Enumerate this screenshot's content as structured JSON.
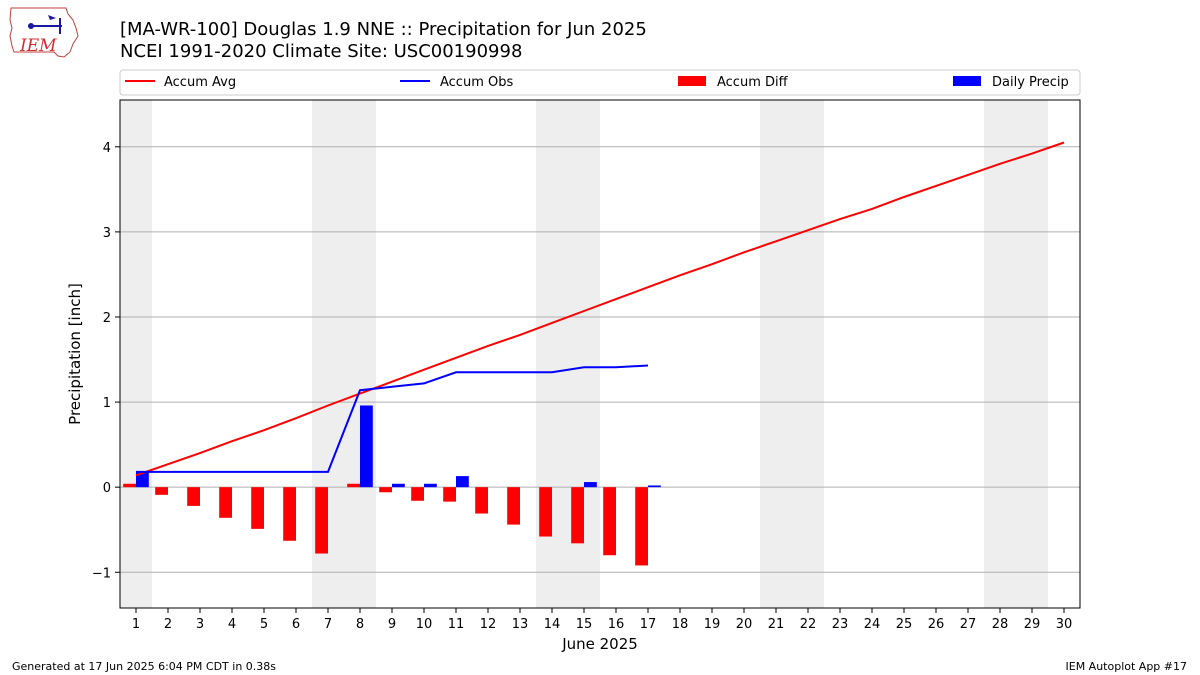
{
  "header": {
    "title_line1": "[MA-WR-100] Douglas 1.9 NNE :: Precipitation for Jun 2025",
    "title_line2": "NCEI 1991-2020 Climate Site: USC00190998",
    "logo_text": "IEM"
  },
  "footer": {
    "left": "Generated at 17 Jun 2025 6:04 PM CDT in 0.38s",
    "right": "IEM Autoplot App #17"
  },
  "colors": {
    "accum_avg": "#ff0000",
    "accum_obs": "#0000ff",
    "accum_diff": "#ff0000",
    "daily_precip": "#0000ff",
    "weekend_shade": "#eeeeee",
    "grid": "#b0b0b0"
  },
  "chart_data": {
    "type": "bar",
    "xlabel": "June 2025",
    "ylabel": "Precipitation [inch]",
    "xlim": [
      0.5,
      30.5
    ],
    "ylim": [
      -1.42,
      4.55
    ],
    "x_ticks": [
      1,
      2,
      3,
      4,
      5,
      6,
      7,
      8,
      9,
      10,
      11,
      12,
      13,
      14,
      15,
      16,
      17,
      18,
      19,
      20,
      21,
      22,
      23,
      24,
      25,
      26,
      27,
      28,
      29,
      30
    ],
    "x_tick_labels": [
      "1",
      "2",
      "3",
      "4",
      "5",
      "6",
      "7",
      "8",
      "9",
      "10",
      "11",
      "12",
      "13",
      "14",
      "15",
      "16",
      "17",
      "18",
      "19",
      "20",
      "21",
      "22",
      "23",
      "24",
      "25",
      "26",
      "27",
      "28",
      "29",
      "30"
    ],
    "y_ticks": [
      -1,
      0,
      1,
      2,
      3,
      4
    ],
    "y_tick_labels": [
      "−1",
      "0",
      "1",
      "2",
      "3",
      "4"
    ],
    "grid": "horizontal",
    "legend_position": "top",
    "legend": [
      {
        "label": "Accum Avg",
        "kind": "line",
        "color": "#ff0000"
      },
      {
        "label": "Accum Obs",
        "kind": "line",
        "color": "#0000ff"
      },
      {
        "label": "Accum Diff",
        "kind": "bar",
        "color": "#ff0000"
      },
      {
        "label": "Daily Precip",
        "kind": "bar",
        "color": "#0000ff"
      }
    ],
    "weekend_shading": [
      [
        0.5,
        1.5
      ],
      [
        6.5,
        8.5
      ],
      [
        13.5,
        15.5
      ],
      [
        20.5,
        22.5
      ],
      [
        27.5,
        29.5
      ]
    ],
    "series": [
      {
        "name": "Accum Avg",
        "type": "line",
        "color": "#ff0000",
        "x": [
          1,
          2,
          3,
          4,
          5,
          6,
          7,
          8,
          9,
          10,
          11,
          12,
          13,
          14,
          15,
          16,
          17,
          18,
          19,
          20,
          21,
          22,
          23,
          24,
          25,
          26,
          27,
          28,
          29,
          30
        ],
        "values": [
          0.14,
          0.27,
          0.4,
          0.54,
          0.67,
          0.81,
          0.96,
          1.1,
          1.24,
          1.38,
          1.52,
          1.66,
          1.79,
          1.93,
          2.07,
          2.21,
          2.35,
          2.49,
          2.62,
          2.76,
          2.89,
          3.02,
          3.15,
          3.27,
          3.41,
          3.54,
          3.67,
          3.8,
          3.92,
          4.05
        ]
      },
      {
        "name": "Accum Obs",
        "type": "line",
        "color": "#0000ff",
        "x": [
          1,
          2,
          3,
          4,
          5,
          6,
          7,
          8,
          9,
          10,
          11,
          12,
          13,
          14,
          15,
          16,
          17
        ],
        "values": [
          0.18,
          0.18,
          0.18,
          0.18,
          0.18,
          0.18,
          0.18,
          1.14,
          1.18,
          1.22,
          1.35,
          1.35,
          1.35,
          1.35,
          1.41,
          1.41,
          1.43
        ]
      },
      {
        "name": "Accum Diff",
        "type": "bar",
        "color": "#ff0000",
        "x": [
          1,
          2,
          3,
          4,
          5,
          6,
          7,
          8,
          9,
          10,
          11,
          12,
          13,
          14,
          15,
          16,
          17
        ],
        "values": [
          0.04,
          -0.09,
          -0.22,
          -0.36,
          -0.49,
          -0.63,
          -0.78,
          0.04,
          -0.06,
          -0.16,
          -0.17,
          -0.31,
          -0.44,
          -0.58,
          -0.66,
          -0.8,
          -0.92
        ]
      },
      {
        "name": "Daily Precip",
        "type": "bar",
        "color": "#0000ff",
        "x": [
          1,
          2,
          3,
          4,
          5,
          6,
          7,
          8,
          9,
          10,
          11,
          12,
          13,
          14,
          15,
          16,
          17
        ],
        "values": [
          0.18,
          0,
          0,
          0,
          0,
          0,
          0,
          0.96,
          0.04,
          0.04,
          0.13,
          0,
          0,
          0,
          0.06,
          0,
          0.02
        ]
      }
    ]
  }
}
